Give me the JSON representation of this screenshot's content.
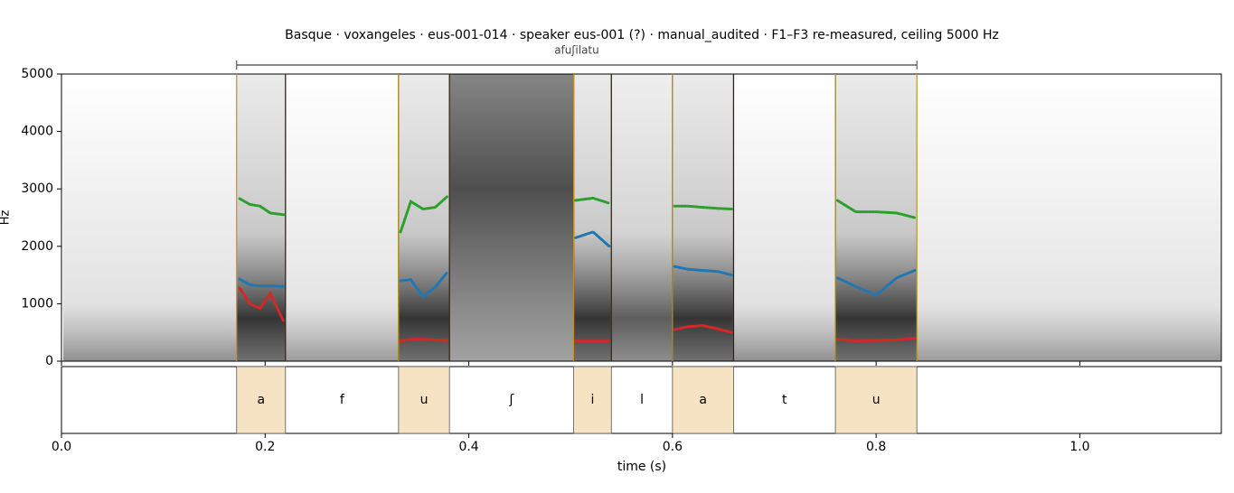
{
  "chart_data": {
    "type": "spectrogram",
    "title": "Basque · voxangeles · eus-001-014 · speaker eus-001 (?) · manual_audited · F1–F3 re-measured, ceiling 5000 Hz",
    "xlabel": "time (s)",
    "ylabel": "Hz",
    "xlim": [
      0,
      1.139
    ],
    "ylim": [
      0,
      5000
    ],
    "xticks": [
      {
        "value": 0,
        "label": "0.0"
      },
      0.2,
      0.4,
      0.6,
      0.8,
      {
        "value": 1,
        "label": "1.0"
      }
    ],
    "yticks": [
      0,
      1000,
      2000,
      3000,
      4000,
      5000
    ],
    "word": {
      "label": "afuʃilatu",
      "start": 0.172,
      "end": 0.84
    },
    "segments": [
      {
        "label": "a",
        "start": 0.172,
        "end": 0.22,
        "vowel": true
      },
      {
        "label": "f",
        "start": 0.22,
        "end": 0.331,
        "vowel": false
      },
      {
        "label": "u",
        "start": 0.331,
        "end": 0.381,
        "vowel": true
      },
      {
        "label": "ʃ",
        "start": 0.381,
        "end": 0.503,
        "vowel": false
      },
      {
        "label": "i",
        "start": 0.503,
        "end": 0.54,
        "vowel": true
      },
      {
        "label": "l",
        "start": 0.54,
        "end": 0.6,
        "vowel": false
      },
      {
        "label": "a",
        "start": 0.6,
        "end": 0.66,
        "vowel": true
      },
      {
        "label": "t",
        "start": 0.66,
        "end": 0.76,
        "vowel": false
      },
      {
        "label": "u",
        "start": 0.76,
        "end": 0.84,
        "vowel": true
      }
    ],
    "x": [
      0.175,
      0.185,
      0.195,
      0.205,
      0.218,
      0.27,
      0.333,
      0.343,
      0.355,
      0.367,
      0.379,
      0.44,
      0.505,
      0.522,
      0.538,
      0.57,
      0.602,
      0.615,
      0.63,
      0.645,
      0.658,
      0.71,
      0.762,
      0.78,
      0.8,
      0.82,
      0.838
    ],
    "series": [
      {
        "color": "#d62728",
        "values": [
          1270,
          1000,
          920,
          1180,
          700,
          null,
          350,
          380,
          380,
          370,
          360,
          null,
          350,
          350,
          350,
          null,
          550,
          600,
          620,
          560,
          500,
          null,
          380,
          350,
          360,
          370,
          400
        ]
      },
      {
        "color": "#1f77b4",
        "values": [
          1430,
          1330,
          1310,
          1310,
          1300,
          null,
          1400,
          1420,
          1120,
          1290,
          1550,
          null,
          2150,
          2250,
          2000,
          null,
          1650,
          1600,
          1580,
          1560,
          1500,
          null,
          1450,
          1300,
          1150,
          1450,
          1580
        ]
      },
      {
        "color": "#2ca02c",
        "values": [
          2830,
          2730,
          2700,
          2580,
          2550,
          null,
          2250,
          2780,
          2650,
          2680,
          2870,
          null,
          2800,
          2840,
          2750,
          null,
          2700,
          2700,
          2680,
          2660,
          2650,
          null,
          2800,
          2600,
          2600,
          2580,
          2500
        ]
      }
    ]
  }
}
